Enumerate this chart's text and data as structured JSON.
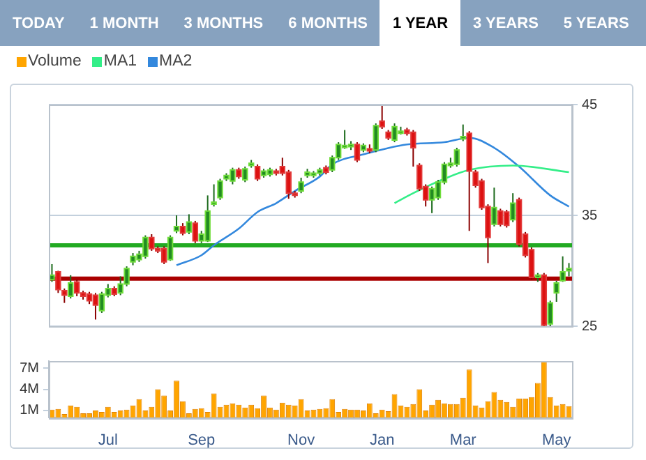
{
  "chart_data": [
    {
      "type": "candlestick",
      "annotations": [
        "TODAY",
        "1 MONTH",
        "3 MONTHS",
        "6 MONTHS",
        "1 YEAR",
        "3 YEARS",
        "5 YEARS"
      ],
      "categories": [
        null,
        null,
        null,
        null,
        null,
        null,
        null,
        null,
        null,
        null,
        null,
        null,
        null,
        null,
        null,
        null,
        null,
        null,
        null,
        null,
        null,
        null,
        null,
        null,
        null,
        null,
        null,
        null,
        null,
        null,
        null,
        null,
        null,
        null,
        null,
        null,
        null,
        null,
        null,
        null,
        null,
        null,
        null,
        null,
        null,
        null,
        null,
        null,
        null,
        null,
        null,
        null,
        null,
        null,
        null,
        null,
        null,
        null,
        null,
        null,
        null,
        null,
        null,
        null,
        null,
        null,
        null,
        null,
        null,
        null,
        null,
        null,
        null,
        null,
        null,
        null,
        null,
        null,
        null,
        null,
        null,
        null,
        null,
        null
      ],
      "ohlc": [
        [
          29.2,
          30.6,
          29.0,
          29.6
        ],
        [
          29.9,
          30.0,
          28.0,
          28.3
        ],
        [
          28.2,
          28.4,
          27.1,
          27.8
        ],
        [
          27.7,
          29.6,
          27.5,
          28.9
        ],
        [
          29.0,
          29.2,
          27.7,
          28.0
        ],
        [
          28.0,
          28.2,
          27.4,
          27.7
        ],
        [
          27.9,
          28.1,
          27.0,
          27.3
        ],
        [
          27.8,
          28.0,
          25.6,
          26.9
        ],
        [
          26.4,
          28.1,
          26.2,
          27.9
        ],
        [
          27.8,
          28.8,
          27.6,
          28.4
        ],
        [
          28.4,
          28.6,
          27.7,
          27.9
        ],
        [
          28.0,
          29.5,
          27.8,
          28.8
        ],
        [
          28.8,
          30.4,
          28.6,
          30.2
        ],
        [
          30.8,
          31.6,
          30.5,
          31.3
        ],
        [
          31.0,
          31.8,
          30.8,
          31.5
        ],
        [
          31.3,
          33.2,
          31.1,
          33.0
        ],
        [
          33.0,
          33.3,
          31.8,
          32.0
        ],
        [
          32.0,
          32.2,
          31.6,
          31.8
        ],
        [
          32.0,
          32.2,
          30.6,
          30.8
        ],
        [
          31.0,
          33.2,
          30.9,
          33.0
        ],
        [
          33.6,
          35.0,
          33.4,
          34.0
        ],
        [
          34.0,
          34.3,
          33.2,
          33.4
        ],
        [
          33.5,
          35.1,
          33.3,
          34.4
        ],
        [
          34.3,
          34.5,
          32.5,
          32.7
        ],
        [
          32.7,
          33.6,
          32.5,
          33.3
        ],
        [
          32.7,
          36.8,
          32.6,
          35.4
        ],
        [
          36.0,
          37.8,
          35.8,
          36.2
        ],
        [
          36.6,
          38.3,
          36.4,
          38.1
        ],
        [
          38.3,
          38.8,
          38.1,
          38.6
        ],
        [
          38.1,
          39.3,
          37.8,
          39.1
        ],
        [
          39.1,
          39.3,
          38.3,
          38.5
        ],
        [
          38.2,
          39.4,
          38.0,
          39.2
        ],
        [
          39.5,
          40.0,
          39.3,
          39.7
        ],
        [
          39.4,
          39.6,
          38.1,
          38.3
        ],
        [
          38.6,
          39.2,
          38.4,
          39.0
        ],
        [
          38.7,
          39.3,
          38.5,
          39.1
        ],
        [
          39.0,
          39.2,
          38.6,
          38.8
        ],
        [
          39.4,
          40.2,
          38.6,
          38.8
        ],
        [
          38.9,
          39.1,
          36.5,
          37.0
        ],
        [
          37.0,
          37.2,
          36.6,
          36.9
        ],
        [
          37.2,
          38.4,
          37.0,
          38.0
        ],
        [
          38.6,
          39.2,
          38.4,
          38.9
        ],
        [
          38.6,
          39.0,
          38.4,
          38.8
        ],
        [
          38.8,
          39.3,
          38.6,
          39.1
        ],
        [
          39.3,
          39.5,
          38.7,
          38.9
        ],
        [
          39.1,
          40.4,
          38.9,
          40.2
        ],
        [
          40.2,
          41.6,
          40.0,
          41.4
        ],
        [
          41.2,
          42.7,
          41.0,
          41.3
        ],
        [
          41.2,
          41.7,
          40.9,
          41.4
        ],
        [
          41.4,
          41.6,
          39.8,
          40.0
        ],
        [
          40.9,
          41.5,
          40.7,
          41.3
        ],
        [
          41.0,
          41.4,
          40.6,
          40.9
        ],
        [
          40.9,
          43.3,
          40.7,
          43.1
        ],
        [
          43.5,
          45.0,
          42.8,
          43.0
        ],
        [
          42.5,
          42.7,
          41.8,
          42.0
        ],
        [
          41.8,
          43.3,
          41.6,
          43.0
        ],
        [
          42.5,
          43.0,
          42.3,
          42.6
        ],
        [
          42.7,
          42.9,
          42.2,
          42.4
        ],
        [
          42.5,
          42.7,
          39.4,
          41.1
        ],
        [
          39.5,
          39.7,
          37.2,
          37.4
        ],
        [
          37.6,
          37.8,
          35.8,
          36.4
        ],
        [
          36.4,
          37.6,
          35.2,
          37.4
        ],
        [
          36.6,
          38.2,
          36.4,
          38.0
        ],
        [
          38.0,
          39.8,
          37.8,
          39.6
        ],
        [
          39.5,
          40.2,
          39.3,
          39.7
        ],
        [
          39.6,
          41.1,
          39.4,
          40.9
        ],
        [
          41.9,
          43.2,
          41.7,
          42.1
        ],
        [
          42.4,
          42.6,
          33.6,
          39.0
        ],
        [
          38.9,
          39.1,
          37.5,
          37.7
        ],
        [
          38.1,
          38.3,
          35.5,
          35.7
        ],
        [
          35.8,
          36.0,
          30.7,
          33.0
        ],
        [
          34.2,
          37.5,
          34.0,
          35.7
        ],
        [
          35.4,
          35.6,
          34.0,
          34.2
        ],
        [
          35.3,
          35.5,
          33.9,
          34.1
        ],
        [
          34.6,
          37.0,
          34.4,
          36.1
        ],
        [
          36.4,
          36.6,
          32.2,
          32.4
        ],
        [
          33.3,
          33.5,
          31.2,
          31.4
        ],
        [
          31.9,
          32.1,
          29.2,
          29.4
        ],
        [
          29.4,
          29.8,
          29.0,
          29.6
        ],
        [
          29.6,
          29.8,
          25.0,
          25.1
        ],
        [
          25.2,
          27.3,
          25.0,
          27.1
        ],
        [
          28.0,
          29.1,
          27.2,
          28.9
        ],
        [
          29.1,
          31.3,
          29.0,
          29.9
        ],
        [
          30.0,
          30.7,
          29.5,
          30.2
        ]
      ],
      "series": [
        {
          "type": "line",
          "name": "MA1",
          "color": "#33ee88",
          "values": [
            null,
            null,
            null,
            null,
            null,
            null,
            null,
            null,
            null,
            null,
            null,
            null,
            null,
            null,
            null,
            null,
            null,
            null,
            null,
            null,
            null,
            null,
            null,
            null,
            null,
            null,
            null,
            null,
            null,
            null,
            null,
            null,
            null,
            null,
            null,
            null,
            null,
            null,
            null,
            null,
            null,
            null,
            null,
            null,
            null,
            null,
            null,
            null,
            null,
            null,
            null,
            null,
            null,
            null,
            null,
            36.1,
            null,
            null,
            37.0,
            null,
            null,
            null,
            null,
            38.3,
            null,
            null,
            null,
            39.1,
            null,
            null,
            null,
            null,
            null,
            null,
            39.5,
            null,
            null,
            null,
            null,
            null,
            null,
            null,
            null,
            38.9
          ]
        },
        {
          "type": "line",
          "name": "MA2",
          "color": "#3388dd",
          "values": [
            null,
            null,
            null,
            null,
            null,
            null,
            null,
            null,
            null,
            null,
            null,
            null,
            null,
            null,
            null,
            null,
            null,
            null,
            null,
            null,
            30.5,
            null,
            null,
            null,
            31.4,
            null,
            32.3,
            null,
            null,
            null,
            33.8,
            null,
            null,
            35.3,
            null,
            null,
            36.1,
            null,
            null,
            37.2,
            null,
            null,
            null,
            38.5,
            null,
            39.6,
            null,
            null,
            null,
            null,
            40.5,
            null,
            null,
            null,
            null,
            null,
            null,
            41.4,
            null,
            null,
            null,
            null,
            null,
            41.6,
            null,
            null,
            null,
            42.0,
            null,
            null,
            null,
            41.1,
            null,
            null,
            null,
            39.4,
            null,
            null,
            null,
            null,
            36.8,
            null,
            null,
            35.8
          ]
        }
      ],
      "ylim": [
        25,
        45
      ],
      "yticks": [
        25,
        35,
        45
      ],
      "grid": "y",
      "tick_labels": "y",
      "legend": "top left",
      "marker": "none",
      "ref_lines": [
        {
          "axis": "y",
          "value": 32.3,
          "color": "#22aa22"
        },
        {
          "axis": "y",
          "value": 29.3,
          "color": "#aa0000"
        }
      ]
    },
    {
      "type": "bar",
      "categories": [
        null,
        null,
        null,
        null,
        null,
        null,
        null,
        null,
        null,
        "Jul",
        null,
        null,
        null,
        null,
        null,
        null,
        null,
        null,
        null,
        null,
        null,
        null,
        null,
        null,
        "Sep",
        null,
        null,
        null,
        null,
        null,
        null,
        null,
        null,
        null,
        null,
        null,
        null,
        null,
        null,
        null,
        "Nov",
        null,
        null,
        null,
        null,
        null,
        null,
        null,
        null,
        null,
        null,
        null,
        null,
        "Jan",
        null,
        null,
        null,
        null,
        null,
        null,
        null,
        null,
        null,
        null,
        null,
        null,
        "Mar",
        null,
        null,
        null,
        null,
        null,
        null,
        null,
        null,
        null,
        null,
        null,
        null,
        null,
        null,
        "May",
        null,
        null
      ],
      "series": [
        {
          "name": "Volume",
          "color": "#ffa500",
          "values": [
            1.1,
            1.2,
            0.5,
            1.7,
            1.5,
            0.6,
            0.6,
            1.0,
            0.8,
            1.5,
            0.8,
            1.0,
            1.1,
            1.7,
            2.6,
            1.0,
            1.5,
            4.0,
            3.1,
            1.0,
            5.2,
            2.3,
            0.6,
            1.2,
            1.3,
            0.8,
            3.4,
            1.5,
            1.8,
            2.0,
            1.8,
            1.4,
            1.8,
            1.3,
            3.1,
            1.4,
            1.1,
            2.1,
            1.8,
            1.7,
            2.6,
            1.0,
            1.1,
            1.2,
            1.3,
            2.6,
            0.8,
            1.2,
            1.1,
            1.1,
            1.0,
            2.0,
            0.6,
            1.1,
            0.9,
            3.3,
            1.7,
            1.5,
            1.9,
            4.0,
            1.0,
            1.8,
            2.5,
            2.0,
            1.9,
            1.9,
            2.8,
            6.8,
            1.7,
            1.4,
            2.3,
            3.6,
            2.5,
            2.2,
            1.5,
            2.7,
            2.7,
            2.9,
            4.9,
            7.9,
            2.9,
            1.7,
            1.9,
            1.6
          ]
        }
      ],
      "ylim": [
        0,
        8
      ],
      "yticks": [
        {
          "value": 1,
          "label": "1M"
        },
        {
          "value": 4,
          "label": "4M"
        },
        {
          "value": 7,
          "label": "7M"
        }
      ],
      "legend": "top left"
    }
  ]
}
